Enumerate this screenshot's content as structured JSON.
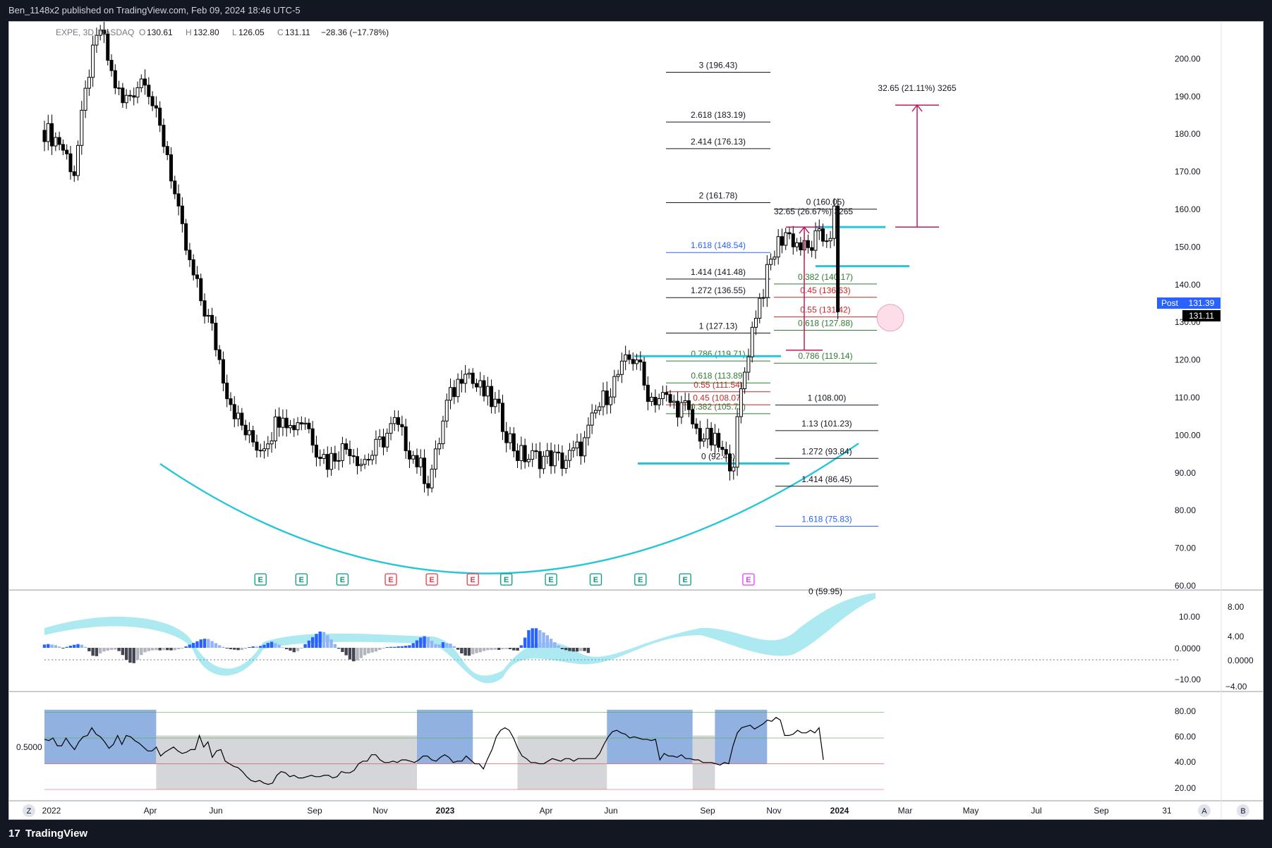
{
  "header": {
    "published_by": "Ben_1148x2 published on TradingView.com, Feb 09, 2024 18:46 UTC-5"
  },
  "footer": {
    "logo_glyph": "17",
    "brand": "TradingView"
  },
  "legend": {
    "symbol": "EXPE, 3D, NASDAQ",
    "o_label": "O",
    "o": "130.61",
    "h_label": "H",
    "h": "132.80",
    "l_label": "L",
    "l": "126.05",
    "c_label": "C",
    "c": "131.11",
    "change": "−28.36 (−17.78%)"
  },
  "price_labels": {
    "post_tag": "Post",
    "post_price": "131.39",
    "last_price": "131.11"
  },
  "panes": {
    "macd_scale_left": [
      "10.00",
      "0.0000",
      "−10.00"
    ],
    "macd_scale_right": [
      "8.00",
      "4.00",
      "0.0000",
      "−4.00"
    ],
    "rsi_left_label": "0.5000",
    "rsi_scale": [
      "80.00",
      "60.00",
      "40.00",
      "20.00"
    ]
  },
  "corner_buttons": {
    "z": "Z",
    "a": "A",
    "b": "B"
  },
  "earnings_marker": "E",
  "colors": {
    "candle_up": "#ffffff",
    "candle_down": "#000000",
    "cup": "#26c6da",
    "measure": "#c2185b",
    "fib_blue": "#2962ff",
    "fib_red": "#c62828",
    "fib_green": "#2e7d32",
    "macd_pos": "#2962ff",
    "macd_pos_light": "#90b4f5",
    "macd_neg": "#434651",
    "macd_neg_light": "#b2b5be",
    "rsi_bull_zone": "#7ea3dc",
    "rsi_bear_zone": "#d5d6da"
  },
  "chart_data": [
    {
      "type": "candlestick",
      "title": "EXPE, 3D, NASDAQ",
      "y_axis": {
        "ticks": [
          "200.00",
          "190.00",
          "180.00",
          "170.00",
          "160.00",
          "150.00",
          "140.00",
          "130.00",
          "120.00",
          "110.00",
          "100.00",
          "90.00",
          "80.00",
          "70.00",
          "60.00"
        ],
        "ylim": [
          60,
          210
        ]
      },
      "x_axis": {
        "labels": [
          "2022",
          "Apr",
          "Jun",
          "Sep",
          "Nov",
          "2023",
          "Apr",
          "Jun",
          "Sep",
          "Nov",
          "2024",
          "Mar",
          "May",
          "Jul",
          "Sep",
          "31"
        ]
      },
      "price_path": [
        [
          0,
          181
        ],
        [
          4,
          178
        ],
        [
          8,
          170
        ],
        [
          12,
          197
        ],
        [
          15,
          208
        ],
        [
          18,
          196
        ],
        [
          21,
          188
        ],
        [
          24,
          192
        ],
        [
          27,
          196
        ],
        [
          30,
          184
        ],
        [
          33,
          175
        ],
        [
          36,
          158
        ],
        [
          39,
          145
        ],
        [
          42,
          136
        ],
        [
          45,
          128
        ],
        [
          47,
          120
        ],
        [
          49,
          112
        ],
        [
          52,
          104
        ],
        [
          55,
          99
        ],
        [
          58,
          97
        ],
        [
          61,
          101
        ],
        [
          64,
          107
        ],
        [
          66,
          102
        ],
        [
          68,
          104
        ],
        [
          70,
          104
        ],
        [
          73,
          97
        ],
        [
          76,
          93
        ],
        [
          79,
          96
        ],
        [
          82,
          97
        ],
        [
          85,
          93
        ],
        [
          88,
          95
        ],
        [
          91,
          99
        ],
        [
          94,
          103
        ],
        [
          97,
          98
        ],
        [
          100,
          93
        ],
        [
          103,
          88
        ],
        [
          105,
          94
        ],
        [
          108,
          108
        ],
        [
          111,
          114
        ],
        [
          113,
          119
        ],
        [
          115,
          114
        ],
        [
          118,
          111
        ],
        [
          121,
          108
        ],
        [
          124,
          101
        ],
        [
          127,
          95
        ],
        [
          130,
          94
        ],
        [
          133,
          94
        ],
        [
          136,
          94
        ],
        [
          139,
          93
        ],
        [
          142,
          95
        ],
        [
          145,
          98
        ],
        [
          148,
          106
        ],
        [
          151,
          111
        ],
        [
          154,
          116
        ],
        [
          157,
          120
        ],
        [
          159,
          121
        ],
        [
          161,
          113
        ],
        [
          163,
          110
        ],
        [
          166,
          110
        ],
        [
          169,
          108
        ],
        [
          172,
          107
        ],
        [
          175,
          101
        ],
        [
          178,
          99
        ],
        [
          181,
          97
        ],
        [
          183,
          93
        ],
        [
          185,
          94
        ],
        [
          187,
          111
        ],
        [
          189,
          123
        ],
        [
          191,
          133
        ],
        [
          193,
          139
        ],
        [
          195,
          146
        ],
        [
          197,
          151
        ],
        [
          199,
          154
        ],
        [
          201,
          152
        ],
        [
          203,
          150
        ],
        [
          205,
          149
        ],
        [
          207,
          152
        ],
        [
          209,
          152
        ],
        [
          211,
          154
        ],
        [
          212,
          159
        ],
        [
          213,
          131
        ]
      ],
      "earnings_markers_x": [
        58,
        69,
        80,
        93,
        104,
        115,
        124,
        136,
        148,
        160,
        172,
        189
      ],
      "earnings_marker_colors": [
        "green",
        "green",
        "green",
        "red",
        "red",
        "red",
        "green",
        "green",
        "green",
        "green",
        "green",
        "magenta"
      ],
      "fib_left": [
        {
          "label": "3 (196.43)",
          "value": 196.43
        },
        {
          "label": "2.618 (183.19)",
          "value": 183.19
        },
        {
          "label": "2.414 (176.13)",
          "value": 176.13
        },
        {
          "label": "2 (161.78)",
          "value": 161.78
        },
        {
          "label": "1.618 (148.54)",
          "value": 148.54
        },
        {
          "label": "1.414 (141.48)",
          "value": 141.48
        },
        {
          "label": "1.272 (136.55)",
          "value": 136.55
        },
        {
          "label": "1 (127.13)",
          "value": 127.13
        },
        {
          "label": "0.786 (119.71)",
          "value": 119.71
        },
        {
          "label": "0.618 (113.89)",
          "value": 113.89
        },
        {
          "label": "0.55 (111.54)",
          "value": 111.54
        },
        {
          "label": "0.45 (108.07)",
          "value": 108.07
        },
        {
          "label": "0.382 (105.72)",
          "value": 105.72
        },
        {
          "label": "0 (92.48)",
          "value": 92.48
        }
      ],
      "fib_right_upper": [
        {
          "label": "0 (160.05)",
          "value": 160.05
        },
        {
          "label": "0.382 (140.17)",
          "value": 140.17
        },
        {
          "label": "0.45 (136.63)",
          "value": 136.63
        },
        {
          "label": "0.55 (131.42)",
          "value": 131.42
        },
        {
          "label": "0.618 (127.88)",
          "value": 127.88
        },
        {
          "label": "0.786 (119.14)",
          "value": 119.14
        }
      ],
      "fib_right_lower": [
        {
          "label": "1 (108.00)",
          "value": 108.0
        },
        {
          "label": "1.13 (101.23)",
          "value": 101.23
        },
        {
          "label": "1.272 (93.84)",
          "value": 93.84
        },
        {
          "label": "1.414 (86.45)",
          "value": 86.45
        },
        {
          "label": "1.618 (75.83)",
          "value": 75.83
        }
      ],
      "measure_labels": {
        "first": "32.65 (26.67%) 3265",
        "second": "32.65 (21.11%) 3265",
        "clipped_bottom": "0 (59.95)"
      },
      "levels": {
        "resistance": 155.3,
        "support": 144.9,
        "range_low": 92.48,
        "cluster_res": 121.0
      }
    },
    {
      "type": "bar",
      "title": "MACD histogram",
      "values": [
        1.4,
        1.6,
        1.4,
        1.1,
        0.5,
        -0.2,
        0.4,
        0.9,
        1.3,
        1.6,
        1.3,
        0.4,
        -1.5,
        -3.4,
        -3.6,
        -2.4,
        -1.6,
        -1.2,
        -0.9,
        -0.8,
        -1.4,
        -3.1,
        -5.2,
        -6.4,
        -6.6,
        -5.1,
        -3.1,
        -1.9,
        -1.4,
        -1.1,
        -1.0,
        -1.1,
        -1.0,
        -1.0,
        -1.1,
        -1.0,
        -0.6,
        -0.1,
        0.6,
        1.4,
        2.1,
        2.8,
        3.6,
        3.9,
        3.8,
        2.9,
        2.0,
        1.1,
        0.4,
        -0.2,
        -0.6,
        -0.8,
        -1.0,
        -0.9,
        -0.4,
        0.3,
        0.6,
        0.5,
        0.8,
        1.3,
        2.1,
        2.6,
        2.0,
        1.3,
        0.2,
        -0.6,
        -1.2,
        -1.9,
        -1.4,
        -0.3,
        1.6,
        3.1,
        4.6,
        6.0,
        7.0,
        6.8,
        5.4,
        3.6,
        1.6,
        -0.4,
        -1.8,
        -3.2,
        -5.0,
        -5.8,
        -5.4,
        -4.4,
        -3.2,
        -2.4,
        -2.0,
        -1.6,
        -0.9,
        -0.3,
        0.3,
        0.4,
        0.4,
        0.6,
        0.7,
        0.9,
        1.1,
        2.0,
        3.2,
        4.4,
        5.0,
        4.6,
        3.0,
        1.6,
        1.4,
        2.4,
        2.0,
        1.8,
        0.7,
        -0.8,
        -2.4,
        -3.3,
        -3.4,
        -2.8,
        -2.3,
        -1.9,
        -1.4,
        -1.0,
        -0.9,
        -0.8,
        -0.9,
        -0.6,
        -0.5,
        -0.6,
        -1.1,
        -1.2,
        1.1,
        4.4,
        7.6,
        8.4,
        8.4,
        7.6,
        6.6,
        5.4,
        3.9,
        2.4,
        1.0,
        -0.6,
        -1.0,
        -1.4,
        -1.6,
        -1.6,
        -1.4,
        -1.4,
        -2.2
      ],
      "ylim": [
        -12,
        14
      ],
      "scale_left": [
        "10.00",
        "0.0000",
        "−10.00"
      ],
      "scale_right": [
        "8.00",
        "4.00",
        "0.0000",
        "−4.00"
      ]
    },
    {
      "type": "line",
      "title": "RSI",
      "values": [
        59,
        58,
        60,
        54,
        54,
        60,
        55,
        51,
        57,
        61,
        62,
        68,
        63,
        61,
        57,
        52,
        55,
        62,
        55,
        62,
        61,
        58,
        56,
        53,
        50,
        50,
        53,
        46,
        49,
        51,
        53,
        50,
        48,
        49,
        51,
        51,
        62,
        53,
        57,
        45,
        50,
        51,
        42,
        40,
        38,
        37,
        34,
        30,
        27,
        26,
        27,
        25,
        24,
        25,
        31,
        34,
        33,
        30,
        31,
        29,
        29,
        30,
        31,
        30,
        30,
        31,
        31,
        29,
        30,
        34,
        33,
        33,
        35,
        40,
        42,
        42,
        47,
        47,
        43,
        41,
        41,
        42,
        41,
        43,
        43,
        42,
        41,
        43,
        46,
        46,
        43,
        42,
        45,
        47,
        45,
        41,
        42,
        42,
        46,
        43,
        40,
        40,
        36,
        44,
        51,
        61,
        66,
        68,
        66,
        60,
        52,
        46,
        44,
        41,
        41,
        40,
        40,
        42,
        44,
        43,
        42,
        44,
        44,
        42,
        44,
        44,
        44,
        44,
        44,
        48,
        55,
        61,
        65,
        66,
        64,
        63,
        60,
        61,
        60,
        59,
        59,
        58,
        59,
        43,
        48,
        46,
        46,
        45,
        47,
        44,
        44,
        43,
        43,
        41,
        41,
        41,
        40,
        39,
        41,
        40,
        54,
        64,
        68,
        69,
        70,
        67,
        69,
        71,
        74,
        73,
        76,
        74,
        62,
        62,
        63,
        66,
        64,
        64,
        66,
        64,
        68,
        43
      ],
      "ylim": [
        10,
        90
      ],
      "scale": [
        "80.00",
        "60.00",
        "40.00",
        "20.00"
      ],
      "levels": [
        70,
        50,
        30
      ],
      "left_label": "0.5000"
    }
  ]
}
